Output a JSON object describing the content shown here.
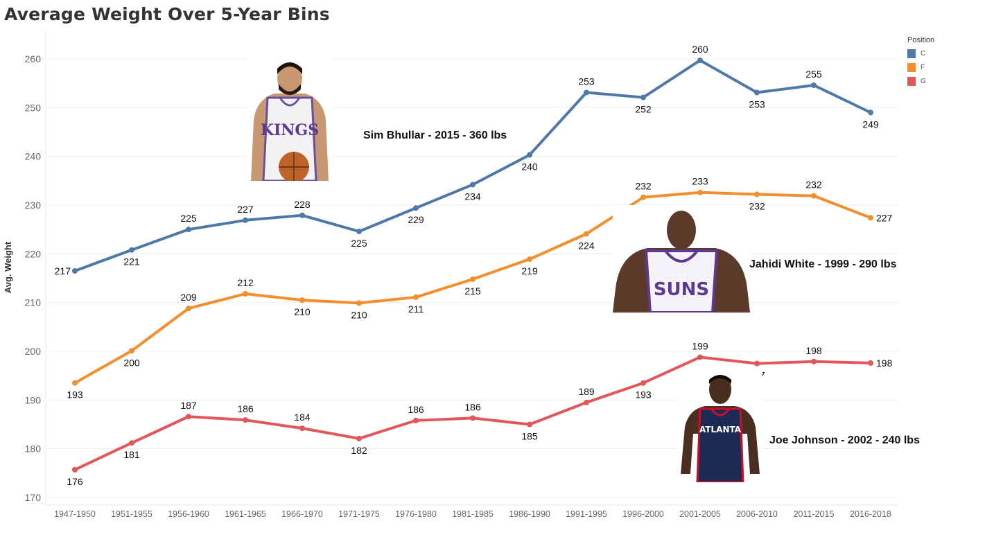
{
  "chart_data": {
    "type": "line",
    "title": "Average Weight Over 5-Year Bins",
    "ylabel": "Avg. Weight",
    "xlabel": "",
    "ylim": [
      170,
      265
    ],
    "yticks": [
      170,
      180,
      190,
      200,
      210,
      220,
      230,
      240,
      250,
      260
    ],
    "grid": true,
    "legend": {
      "title": "Position",
      "placement": "top-right"
    },
    "categories": [
      "1947-1950",
      "1951-1955",
      "1956-1960",
      "1961-1965",
      "1966-1970",
      "1971-1975",
      "1976-1980",
      "1981-1985",
      "1986-1990",
      "1991-1995",
      "1996-2000",
      "2001-2005",
      "2006-2010",
      "2011-2015",
      "2016-2018"
    ],
    "series": [
      {
        "name": "C",
        "color": "#4e79a7",
        "values": [
          216.5,
          220.8,
          225.0,
          226.9,
          227.9,
          224.6,
          229.4,
          234.2,
          240.3,
          253.1,
          252.1,
          259.7,
          253.1,
          254.6,
          249.0
        ],
        "labels": [
          "217",
          "221",
          "225",
          "227",
          "228",
          "225",
          "229",
          "234",
          "240",
          "253",
          "252",
          "260",
          "253",
          "255",
          "249"
        ]
      },
      {
        "name": "F",
        "color": "#f28e2b",
        "values": [
          193.5,
          200.1,
          208.8,
          211.8,
          210.5,
          209.9,
          211.1,
          214.8,
          218.9,
          224.1,
          231.6,
          232.6,
          232.2,
          231.9,
          227.4
        ],
        "labels": [
          "193",
          "200",
          "209",
          "212",
          "210",
          "210",
          "211",
          "215",
          "219",
          "224",
          "232",
          "233",
          "232",
          "232",
          "227"
        ]
      },
      {
        "name": "G",
        "color": "#e15759",
        "values": [
          175.7,
          181.2,
          186.6,
          185.9,
          184.2,
          182.1,
          185.8,
          186.3,
          185.0,
          189.5,
          193.5,
          198.8,
          197.5,
          197.9,
          197.6
        ],
        "labels": [
          "176",
          "181",
          "187",
          "186",
          "184",
          "182",
          "186",
          "186",
          "185",
          "189",
          "193",
          "199",
          "197",
          "198",
          "198"
        ]
      }
    ]
  },
  "annotations": [
    {
      "text": "Sim Bhullar - 2015 - 360 lbs",
      "team": "KINGS",
      "jersey_color": "#f2f2f4",
      "trim": "#6a4fa0",
      "skin": "#c79872"
    },
    {
      "text": "Jahidi White - 1999 - 290 lbs",
      "team": "SUNS",
      "jersey_color": "#f4f2f6",
      "trim": "#5d3a8f",
      "skin": "#5a3a28"
    },
    {
      "text": "Joe Johnson - 2002 - 240 lbs",
      "team": "ATLANTA",
      "jersey_color": "#1d2a52",
      "trim": "#c8102e",
      "skin": "#4a2e1f"
    }
  ]
}
